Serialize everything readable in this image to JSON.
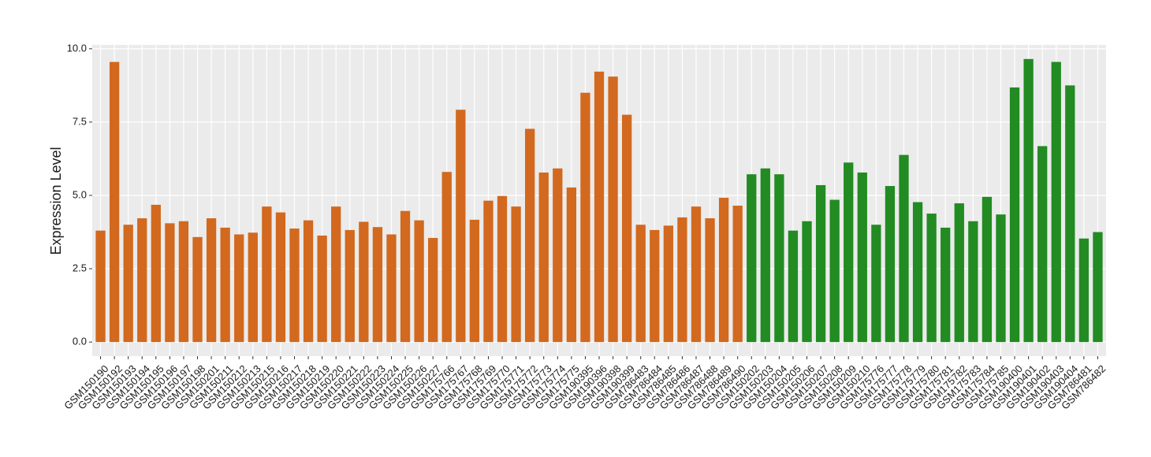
{
  "chart_data": {
    "type": "bar",
    "y_label": "Expression Level",
    "categories": [
      "GSM150190",
      "GSM150192",
      "GSM150193",
      "GSM150194",
      "GSM150195",
      "GSM150196",
      "GSM150197",
      "GSM150198",
      "GSM150201",
      "GSM150211",
      "GSM150212",
      "GSM150213",
      "GSM150215",
      "GSM150216",
      "GSM150217",
      "GSM150218",
      "GSM150219",
      "GSM150220",
      "GSM150221",
      "GSM150222",
      "GSM150223",
      "GSM150224",
      "GSM150225",
      "GSM150226",
      "GSM150227",
      "GSM175766",
      "GSM175767",
      "GSM175768",
      "GSM175769",
      "GSM175770",
      "GSM175771",
      "GSM175772",
      "GSM175773",
      "GSM175774",
      "GSM175775",
      "GSM190395",
      "GSM190396",
      "GSM190398",
      "GSM190399",
      "GSM786483",
      "GSM786484",
      "GSM786485",
      "GSM786486",
      "GSM786487",
      "GSM786488",
      "GSM786489",
      "GSM786490",
      "GSM150202",
      "GSM150203",
      "GSM150204",
      "GSM150205",
      "GSM150206",
      "GSM150207",
      "GSM150208",
      "GSM150209",
      "GSM150210",
      "GSM175776",
      "GSM175777",
      "GSM175778",
      "GSM175779",
      "GSM175780",
      "GSM175781",
      "GSM175782",
      "GSM175783",
      "GSM175784",
      "GSM175785",
      "GSM190400",
      "GSM190401",
      "GSM190402",
      "GSM190403",
      "GSM190404",
      "GSM786481",
      "GSM786482"
    ],
    "values": [
      3.8,
      9.55,
      4.0,
      4.22,
      4.68,
      4.05,
      4.12,
      3.58,
      4.22,
      3.9,
      3.67,
      3.73,
      4.62,
      4.42,
      3.87,
      4.15,
      3.63,
      4.62,
      3.82,
      4.1,
      3.92,
      3.67,
      4.47,
      4.15,
      3.55,
      5.8,
      7.92,
      4.17,
      4.82,
      4.98,
      4.62,
      7.27,
      5.78,
      5.92,
      5.27,
      8.5,
      9.22,
      9.05,
      7.75,
      4.0,
      3.82,
      3.97,
      4.25,
      4.62,
      4.22,
      4.92,
      4.65,
      5.72,
      5.92,
      5.72,
      3.8,
      4.12,
      5.35,
      4.85,
      6.12,
      5.78,
      4.0,
      5.32,
      6.38,
      4.77,
      4.38,
      3.9,
      4.73,
      4.12,
      4.95,
      4.35,
      8.68,
      9.65,
      6.68,
      9.55,
      8.75,
      3.53,
      3.75
    ],
    "colors": [
      "#d2691e",
      "#d2691e",
      "#d2691e",
      "#d2691e",
      "#d2691e",
      "#d2691e",
      "#d2691e",
      "#d2691e",
      "#d2691e",
      "#d2691e",
      "#d2691e",
      "#d2691e",
      "#d2691e",
      "#d2691e",
      "#d2691e",
      "#d2691e",
      "#d2691e",
      "#d2691e",
      "#d2691e",
      "#d2691e",
      "#d2691e",
      "#d2691e",
      "#d2691e",
      "#d2691e",
      "#d2691e",
      "#d2691e",
      "#d2691e",
      "#d2691e",
      "#d2691e",
      "#d2691e",
      "#d2691e",
      "#d2691e",
      "#d2691e",
      "#d2691e",
      "#d2691e",
      "#d2691e",
      "#d2691e",
      "#d2691e",
      "#d2691e",
      "#d2691e",
      "#d2691e",
      "#d2691e",
      "#d2691e",
      "#d2691e",
      "#d2691e",
      "#d2691e",
      "#d2691e",
      "#228b22",
      "#228b22",
      "#228b22",
      "#228b22",
      "#228b22",
      "#228b22",
      "#228b22",
      "#228b22",
      "#228b22",
      "#228b22",
      "#228b22",
      "#228b22",
      "#228b22",
      "#228b22",
      "#228b22",
      "#228b22",
      "#228b22",
      "#228b22",
      "#228b22",
      "#228b22",
      "#228b22",
      "#228b22",
      "#228b22",
      "#228b22",
      "#228b22",
      "#228b22"
    ],
    "ylim": [
      -0.48,
      10.13
    ],
    "yticks": [
      {
        "value": 0,
        "label": "0.0"
      },
      {
        "value": 2.5,
        "label": "2.5"
      },
      {
        "value": 5,
        "label": "5.0"
      },
      {
        "value": 7.5,
        "label": "7.5"
      },
      {
        "value": 10,
        "label": "10.0"
      }
    ],
    "grid": true
  }
}
